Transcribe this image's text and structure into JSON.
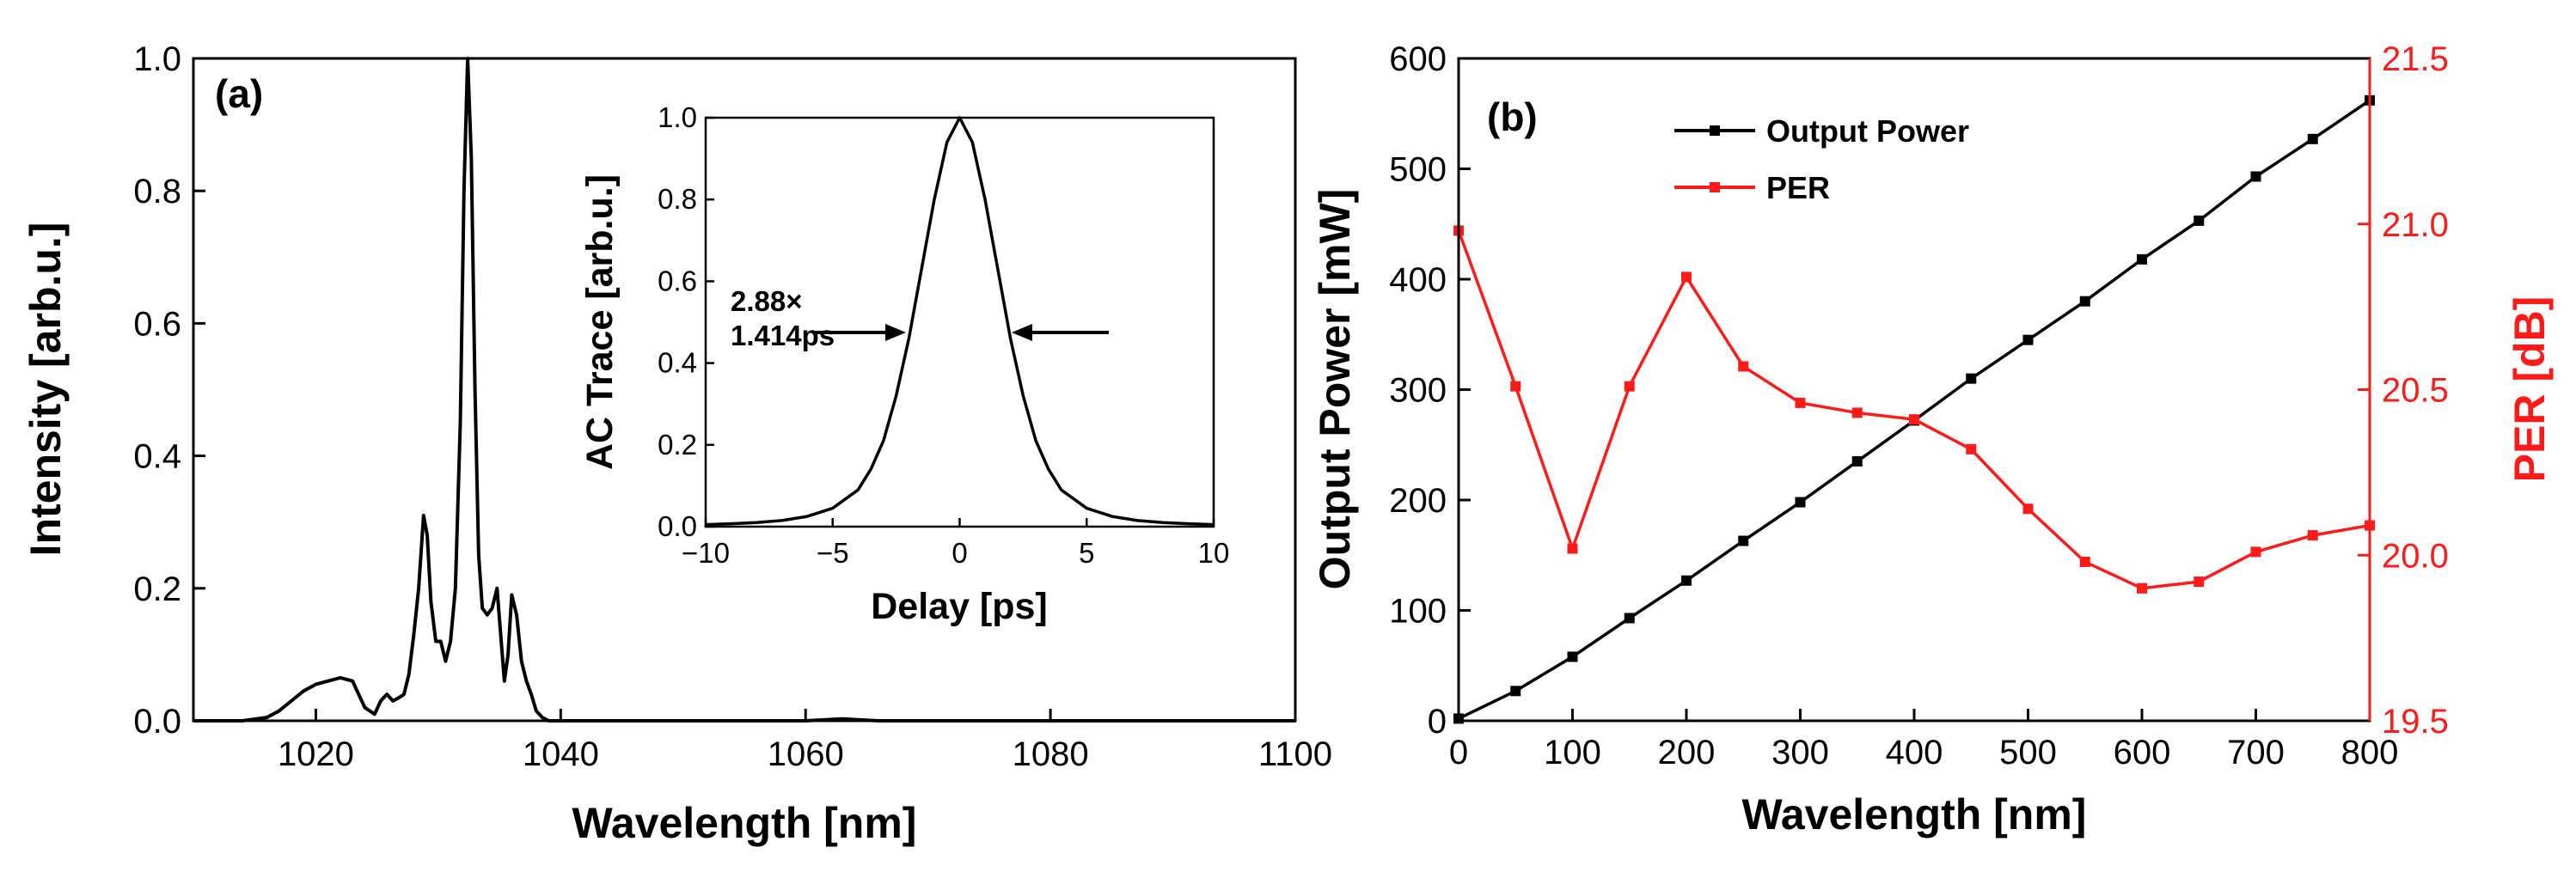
{
  "colors": {
    "black": "#000000",
    "red": "#ff1a1a"
  },
  "chart_data": [
    {
      "id": "a",
      "panel_label": "(a)",
      "type": "line",
      "title": "",
      "xlabel": "Wavelength [nm]",
      "ylabel": "Intensity [arb.u.]",
      "xlim": [
        1010,
        1100
      ],
      "ylim": [
        0.0,
        1.0
      ],
      "xticks": [
        1020,
        1040,
        1060,
        1080,
        1100
      ],
      "yticks": [
        "0.0",
        "0.2",
        "0.4",
        "0.6",
        "0.8",
        "1.0"
      ],
      "series": [
        {
          "name": "Spectrum",
          "color": "#000000",
          "x": [
            1010,
            1014,
            1016,
            1017,
            1018,
            1019,
            1020,
            1021,
            1022,
            1023,
            1023.5,
            1024,
            1024.8,
            1025.3,
            1025.8,
            1026.3,
            1026.8,
            1027.2,
            1027.6,
            1028,
            1028.4,
            1028.8,
            1029.1,
            1029.4,
            1029.8,
            1030.2,
            1030.6,
            1031,
            1031.4,
            1031.8,
            1032.1,
            1032.4,
            1032.7,
            1033,
            1033.3,
            1033.6,
            1034,
            1034.4,
            1034.8,
            1035.1,
            1035.4,
            1035.7,
            1036,
            1036.4,
            1036.8,
            1037.2,
            1037.6,
            1038,
            1038.5,
            1039,
            1045,
            1060,
            1063,
            1066,
            1100
          ],
          "values": [
            0.0,
            0.0,
            0.005,
            0.015,
            0.03,
            0.045,
            0.055,
            0.06,
            0.065,
            0.06,
            0.04,
            0.02,
            0.01,
            0.03,
            0.04,
            0.03,
            0.035,
            0.04,
            0.07,
            0.13,
            0.2,
            0.31,
            0.28,
            0.18,
            0.12,
            0.12,
            0.09,
            0.12,
            0.2,
            0.45,
            0.8,
            1.0,
            0.85,
            0.5,
            0.25,
            0.17,
            0.16,
            0.17,
            0.2,
            0.13,
            0.06,
            0.1,
            0.19,
            0.16,
            0.09,
            0.06,
            0.04,
            0.015,
            0.005,
            0.0,
            0.0,
            0.0,
            0.003,
            0.0,
            0.0
          ]
        }
      ],
      "legend": [],
      "annotations": []
    },
    {
      "id": "a-inset",
      "type": "line",
      "title": "",
      "xlabel": "Delay [ps]",
      "ylabel": "AC Trace [arb.u.]",
      "xlim": [
        -10,
        10
      ],
      "ylim": [
        0.0,
        1.0
      ],
      "xticks": [
        "−10",
        "−5",
        "0",
        "5",
        "10"
      ],
      "yticks": [
        "0.0",
        "0.2",
        "0.4",
        "0.6",
        "0.8",
        "1.0"
      ],
      "series": [
        {
          "name": "AC Trace",
          "color": "#000000",
          "x": [
            -10,
            -9,
            -8,
            -7,
            -6,
            -5,
            -4,
            -3.5,
            -3,
            -2.5,
            -2,
            -1.5,
            -1,
            -0.5,
            0,
            0.5,
            1,
            1.5,
            2,
            2.5,
            3,
            3.5,
            4,
            5,
            6,
            7,
            8,
            9,
            10
          ],
          "values": [
            0.005,
            0.007,
            0.01,
            0.015,
            0.025,
            0.045,
            0.09,
            0.14,
            0.21,
            0.32,
            0.46,
            0.63,
            0.8,
            0.94,
            1.0,
            0.94,
            0.8,
            0.63,
            0.46,
            0.32,
            0.21,
            0.14,
            0.09,
            0.045,
            0.025,
            0.015,
            0.01,
            0.007,
            0.005
          ]
        }
      ],
      "legend": [],
      "annotations": [
        {
          "text": "2.88×"
        },
        {
          "text": "1.414ps"
        }
      ]
    },
    {
      "id": "b",
      "panel_label": "(b)",
      "type": "line",
      "title": "",
      "xlabel": "Wavelength [nm]",
      "ylabel": "Output Power [mW]",
      "y2label": "PER [dB]",
      "xlim": [
        0,
        800
      ],
      "ylim": [
        0,
        600
      ],
      "y2lim": [
        19.5,
        21.5
      ],
      "xticks": [
        0,
        100,
        200,
        300,
        400,
        500,
        600,
        700,
        800
      ],
      "yticks": [
        0,
        100,
        200,
        300,
        400,
        500,
        600
      ],
      "y2ticks": [
        "19.5",
        "20.0",
        "20.5",
        "21.0",
        "21.5"
      ],
      "series": [
        {
          "name": "Output Power",
          "axis": "left",
          "color": "#000000",
          "x": [
            0,
            50,
            100,
            150,
            200,
            250,
            300,
            350,
            400,
            450,
            500,
            550,
            600,
            650,
            700,
            750,
            800
          ],
          "values": [
            2,
            27,
            58,
            93,
            127,
            163,
            198,
            235,
            272,
            310,
            345,
            380,
            418,
            453,
            493,
            527,
            562
          ]
        },
        {
          "name": "PER",
          "axis": "right",
          "color": "#ff1a1a",
          "x": [
            0,
            50,
            100,
            150,
            200,
            250,
            300,
            350,
            400,
            450,
            500,
            550,
            600,
            650,
            700,
            750,
            800
          ],
          "values": [
            20.98,
            20.51,
            20.02,
            20.51,
            20.84,
            20.57,
            20.46,
            20.43,
            20.41,
            20.32,
            20.14,
            19.98,
            19.9,
            19.92,
            20.01,
            20.06,
            20.09
          ]
        }
      ],
      "legend": [
        "Output Power",
        "PER"
      ],
      "legend_position": "top-center",
      "annotations": []
    }
  ]
}
